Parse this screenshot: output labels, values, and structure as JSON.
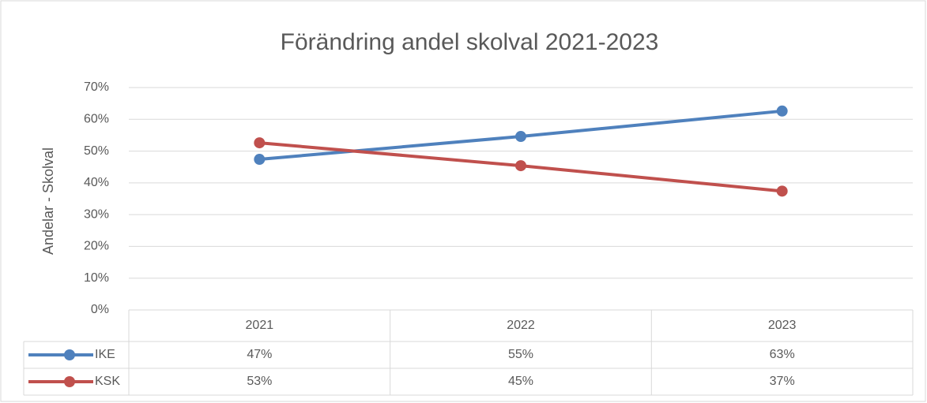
{
  "chart_data": {
    "type": "line",
    "title": "Förändring andel skolval 2021-2023",
    "y_label": "Andelar - Skolval",
    "categories": [
      "2021",
      "2022",
      "2023"
    ],
    "series": [
      {
        "name": "IKE",
        "color": "#4f81bd",
        "values": [
          47.4,
          54.6,
          62.6
        ],
        "value_labels": [
          "47%",
          "55%",
          "63%"
        ]
      },
      {
        "name": "KSK",
        "color": "#c0504d",
        "values": [
          52.6,
          45.4,
          37.4
        ],
        "value_labels": [
          "53%",
          "45%",
          "37%"
        ]
      }
    ],
    "ylim": [
      0,
      70
    ],
    "yticks": [
      {
        "value": 0,
        "label": "0%"
      },
      {
        "value": 10,
        "label": "10%"
      },
      {
        "value": 20,
        "label": "20%"
      },
      {
        "value": 30,
        "label": "30%"
      },
      {
        "value": 40,
        "label": "40%"
      },
      {
        "value": 50,
        "label": "50%"
      },
      {
        "value": 60,
        "label": "60%"
      },
      {
        "value": 70,
        "label": "70%"
      }
    ],
    "grid": true,
    "data_table": true
  }
}
